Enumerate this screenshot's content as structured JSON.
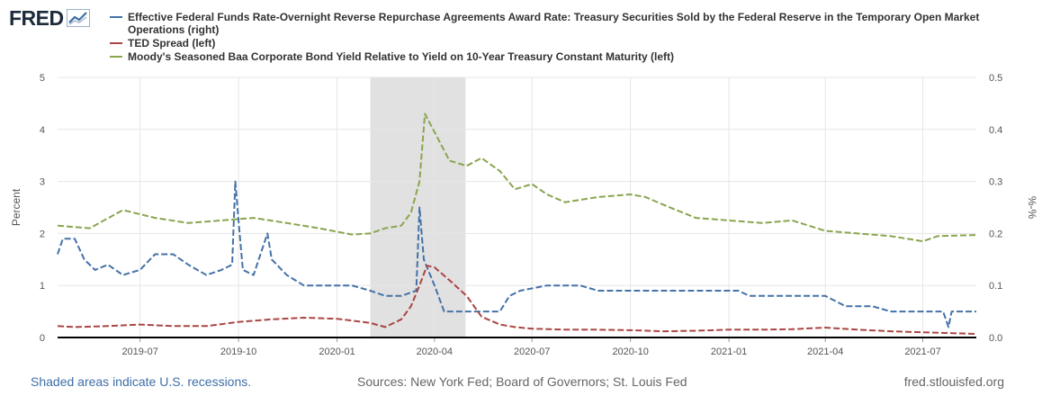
{
  "logo": {
    "text": "FRED",
    "icon": "fred-graph-icon"
  },
  "footer": {
    "recession_note": "Shaded areas indicate U.S. recessions.",
    "sources": "Sources: New York Fed; Board of Governors; St. Louis Fed",
    "site": "fred.stlouisfed.org"
  },
  "colors": {
    "blue": "#4572a7",
    "red": "#aa4643",
    "green": "#89a54e",
    "recession": "#e1e1e1",
    "grid": "#e6e6e6",
    "axis": "#000000"
  },
  "chart_data": {
    "type": "line",
    "xlabels": [
      "2019-07",
      "2019-10",
      "2020-01",
      "2020-04",
      "2020-07",
      "2020-10",
      "2021-01",
      "2021-04",
      "2021-07"
    ],
    "x_range": [
      "2019-04-15",
      "2021-08-20"
    ],
    "recession": [
      "2020-02-01",
      "2020-04-30"
    ],
    "y_left": {
      "label": "Percent",
      "range": [
        0,
        5
      ],
      "ticks": [
        "0",
        "1",
        "2",
        "3",
        "4",
        "5"
      ]
    },
    "y_right": {
      "label": "%-%",
      "range": [
        0,
        0.5
      ],
      "ticks": [
        "0.0",
        "0.1",
        "0.2",
        "0.3",
        "0.4",
        "0.5"
      ]
    },
    "series": [
      {
        "name": "Effective Federal Funds Rate-Overnight Reverse Repurchase Agreements Award Rate: Treasury Securities Sold by the Federal Reserve in the Temporary Open Market Operations (right)",
        "color": "#4572a7",
        "axis": "right",
        "points": [
          [
            "2019-04-15",
            0.16
          ],
          [
            "2019-04-20",
            0.19
          ],
          [
            "2019-05-01",
            0.19
          ],
          [
            "2019-05-10",
            0.15
          ],
          [
            "2019-05-20",
            0.13
          ],
          [
            "2019-06-01",
            0.14
          ],
          [
            "2019-06-15",
            0.12
          ],
          [
            "2019-07-01",
            0.13
          ],
          [
            "2019-07-15",
            0.16
          ],
          [
            "2019-08-01",
            0.16
          ],
          [
            "2019-08-15",
            0.14
          ],
          [
            "2019-09-01",
            0.12
          ],
          [
            "2019-09-15",
            0.13
          ],
          [
            "2019-09-25",
            0.14
          ],
          [
            "2019-09-28",
            0.3
          ],
          [
            "2019-10-02",
            0.2
          ],
          [
            "2019-10-05",
            0.13
          ],
          [
            "2019-10-15",
            0.12
          ],
          [
            "2019-10-28",
            0.2
          ],
          [
            "2019-11-01",
            0.15
          ],
          [
            "2019-11-15",
            0.12
          ],
          [
            "2019-12-01",
            0.1
          ],
          [
            "2019-12-20",
            0.1
          ],
          [
            "2020-01-15",
            0.1
          ],
          [
            "2020-02-01",
            0.09
          ],
          [
            "2020-02-15",
            0.08
          ],
          [
            "2020-03-01",
            0.08
          ],
          [
            "2020-03-15",
            0.09
          ],
          [
            "2020-03-18",
            0.25
          ],
          [
            "2020-03-22",
            0.15
          ],
          [
            "2020-04-01",
            0.1
          ],
          [
            "2020-04-10",
            0.05
          ],
          [
            "2020-05-01",
            0.05
          ],
          [
            "2020-06-01",
            0.05
          ],
          [
            "2020-06-10",
            0.08
          ],
          [
            "2020-06-20",
            0.09
          ],
          [
            "2020-07-15",
            0.1
          ],
          [
            "2020-08-15",
            0.1
          ],
          [
            "2020-09-01",
            0.09
          ],
          [
            "2020-10-15",
            0.09
          ],
          [
            "2020-11-15",
            0.09
          ],
          [
            "2020-12-15",
            0.09
          ],
          [
            "2021-01-10",
            0.09
          ],
          [
            "2021-01-20",
            0.08
          ],
          [
            "2021-02-15",
            0.08
          ],
          [
            "2021-03-15",
            0.08
          ],
          [
            "2021-04-01",
            0.08
          ],
          [
            "2021-04-20",
            0.06
          ],
          [
            "2021-05-15",
            0.06
          ],
          [
            "2021-06-01",
            0.05
          ],
          [
            "2021-06-15",
            0.05
          ],
          [
            "2021-07-01",
            0.05
          ],
          [
            "2021-07-20",
            0.05
          ],
          [
            "2021-07-25",
            0.02
          ],
          [
            "2021-07-28",
            0.05
          ],
          [
            "2021-08-20",
            0.05
          ]
        ]
      },
      {
        "name": "TED Spread (left)",
        "color": "#aa4643",
        "axis": "left",
        "points": [
          [
            "2019-04-15",
            0.22
          ],
          [
            "2019-05-01",
            0.2
          ],
          [
            "2019-06-01",
            0.22
          ],
          [
            "2019-07-01",
            0.25
          ],
          [
            "2019-08-01",
            0.22
          ],
          [
            "2019-09-01",
            0.22
          ],
          [
            "2019-10-01",
            0.3
          ],
          [
            "2019-11-01",
            0.35
          ],
          [
            "2019-12-01",
            0.38
          ],
          [
            "2020-01-01",
            0.36
          ],
          [
            "2020-02-01",
            0.28
          ],
          [
            "2020-02-15",
            0.2
          ],
          [
            "2020-03-01",
            0.35
          ],
          [
            "2020-03-10",
            0.6
          ],
          [
            "2020-03-18",
            1.0
          ],
          [
            "2020-03-25",
            1.38
          ],
          [
            "2020-04-01",
            1.35
          ],
          [
            "2020-04-15",
            1.1
          ],
          [
            "2020-05-01",
            0.8
          ],
          [
            "2020-05-15",
            0.4
          ],
          [
            "2020-06-01",
            0.25
          ],
          [
            "2020-06-15",
            0.2
          ],
          [
            "2020-07-01",
            0.17
          ],
          [
            "2020-08-01",
            0.15
          ],
          [
            "2020-09-01",
            0.15
          ],
          [
            "2020-10-01",
            0.14
          ],
          [
            "2020-11-01",
            0.12
          ],
          [
            "2020-12-01",
            0.13
          ],
          [
            "2021-01-01",
            0.15
          ],
          [
            "2021-02-01",
            0.15
          ],
          [
            "2021-03-01",
            0.16
          ],
          [
            "2021-04-01",
            0.19
          ],
          [
            "2021-05-01",
            0.15
          ],
          [
            "2021-06-01",
            0.12
          ],
          [
            "2021-07-01",
            0.1
          ],
          [
            "2021-08-20",
            0.07
          ]
        ]
      },
      {
        "name": "Moody's Seasoned Baa Corporate Bond Yield Relative to Yield on 10-Year Treasury Constant Maturity (left)",
        "color": "#89a54e",
        "axis": "left",
        "points": [
          [
            "2019-04-15",
            2.15
          ],
          [
            "2019-05-15",
            2.1
          ],
          [
            "2019-06-15",
            2.45
          ],
          [
            "2019-07-15",
            2.3
          ],
          [
            "2019-08-15",
            2.2
          ],
          [
            "2019-09-15",
            2.25
          ],
          [
            "2019-10-15",
            2.3
          ],
          [
            "2019-11-15",
            2.2
          ],
          [
            "2019-12-15",
            2.1
          ],
          [
            "2020-01-15",
            1.98
          ],
          [
            "2020-02-01",
            2.0
          ],
          [
            "2020-02-15",
            2.1
          ],
          [
            "2020-03-01",
            2.15
          ],
          [
            "2020-03-10",
            2.4
          ],
          [
            "2020-03-18",
            3.0
          ],
          [
            "2020-03-23",
            4.3
          ],
          [
            "2020-04-01",
            3.95
          ],
          [
            "2020-04-15",
            3.4
          ],
          [
            "2020-05-01",
            3.3
          ],
          [
            "2020-05-15",
            3.45
          ],
          [
            "2020-06-01",
            3.2
          ],
          [
            "2020-06-15",
            2.85
          ],
          [
            "2020-07-01",
            2.95
          ],
          [
            "2020-07-15",
            2.75
          ],
          [
            "2020-08-01",
            2.6
          ],
          [
            "2020-09-01",
            2.7
          ],
          [
            "2020-10-01",
            2.75
          ],
          [
            "2020-10-15",
            2.7
          ],
          [
            "2020-11-01",
            2.55
          ],
          [
            "2020-12-01",
            2.3
          ],
          [
            "2021-01-01",
            2.25
          ],
          [
            "2021-02-01",
            2.2
          ],
          [
            "2021-03-01",
            2.25
          ],
          [
            "2021-04-01",
            2.05
          ],
          [
            "2021-05-01",
            2.0
          ],
          [
            "2021-06-01",
            1.95
          ],
          [
            "2021-07-01",
            1.85
          ],
          [
            "2021-07-15",
            1.95
          ],
          [
            "2021-08-20",
            1.97
          ]
        ]
      }
    ]
  }
}
